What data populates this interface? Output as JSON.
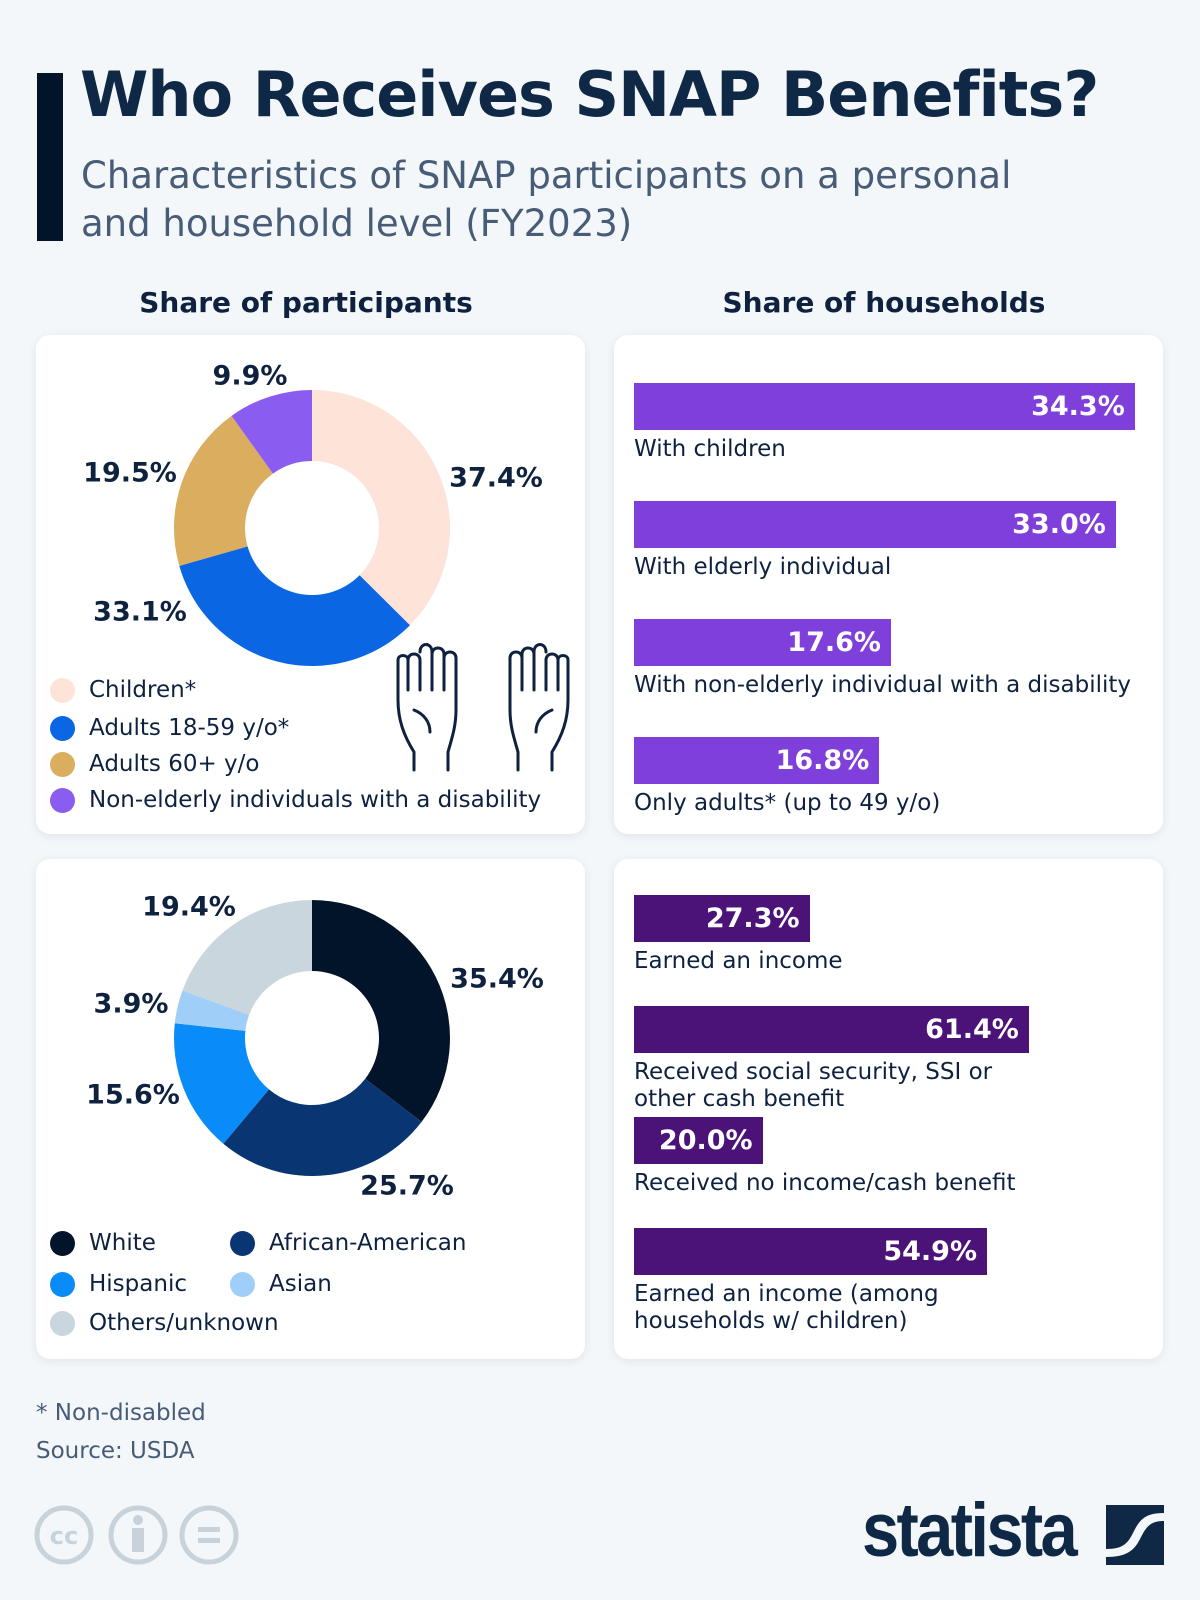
{
  "header": {
    "title": "Who Receives SNAP Benefits?",
    "subtitle": "Characteristics of SNAP participants on a personal and household level (FY2023)"
  },
  "sections": {
    "participants": "Share of participants",
    "households": "Share of households"
  },
  "chart_data": [
    {
      "type": "pie",
      "variant": "donut",
      "title": "",
      "categories": [
        "Children*",
        "Adults 18-59 y/o*",
        "Adults  60+ y/o",
        "Non-elderly individuals with a disability"
      ],
      "values": [
        37.4,
        33.1,
        19.5,
        9.9
      ],
      "labels": [
        "37.4%",
        "33.1%",
        "19.5%",
        "9.9%"
      ],
      "colors": [
        "#fde3d8",
        "#0a66e3",
        "#dbad5e",
        "#8b5cf0"
      ],
      "legend_position": "bottom-left"
    },
    {
      "type": "pie",
      "variant": "donut",
      "title": "",
      "categories": [
        "White",
        "African-American",
        "Hispanic",
        "Asian",
        "Others/unknown"
      ],
      "values": [
        35.4,
        25.7,
        15.6,
        3.9,
        19.4
      ],
      "labels": [
        "35.4%",
        "25.7%",
        "15.6%",
        "3.9%",
        "19.4%"
      ],
      "colors": [
        "#02142a",
        "#0a3573",
        "#0a8cf8",
        "#9fcff8",
        "#c9d6de"
      ],
      "legend_position": "bottom-left"
    },
    {
      "type": "bar",
      "orientation": "horizontal",
      "categories": [
        "With children",
        "With elderly individual",
        "With non-elderly individual with a disability",
        "Only adults* (up to 49 y/o)"
      ],
      "values": [
        34.3,
        33.0,
        17.6,
        16.8
      ],
      "labels": [
        "34.3%",
        "33.0%",
        "17.6%",
        "16.8%"
      ],
      "color": "#7f3fdb"
    },
    {
      "type": "bar",
      "orientation": "horizontal",
      "categories": [
        "Earned an income",
        "Received social security, SSI or other cash benefit",
        "Received no income/cash benefit",
        "Earned an income (among households w/ children)"
      ],
      "values": [
        27.3,
        61.4,
        20.0,
        54.9
      ],
      "labels": [
        "27.3%",
        "61.4%",
        "20.0%",
        "54.9%"
      ],
      "color": "#4b1278"
    }
  ],
  "footer": {
    "note": "* Non-disabled",
    "source": "Source: USDA",
    "license_icons": [
      "cc-icon",
      "attribution-icon",
      "no-derivatives-icon"
    ],
    "brand": "statista"
  }
}
